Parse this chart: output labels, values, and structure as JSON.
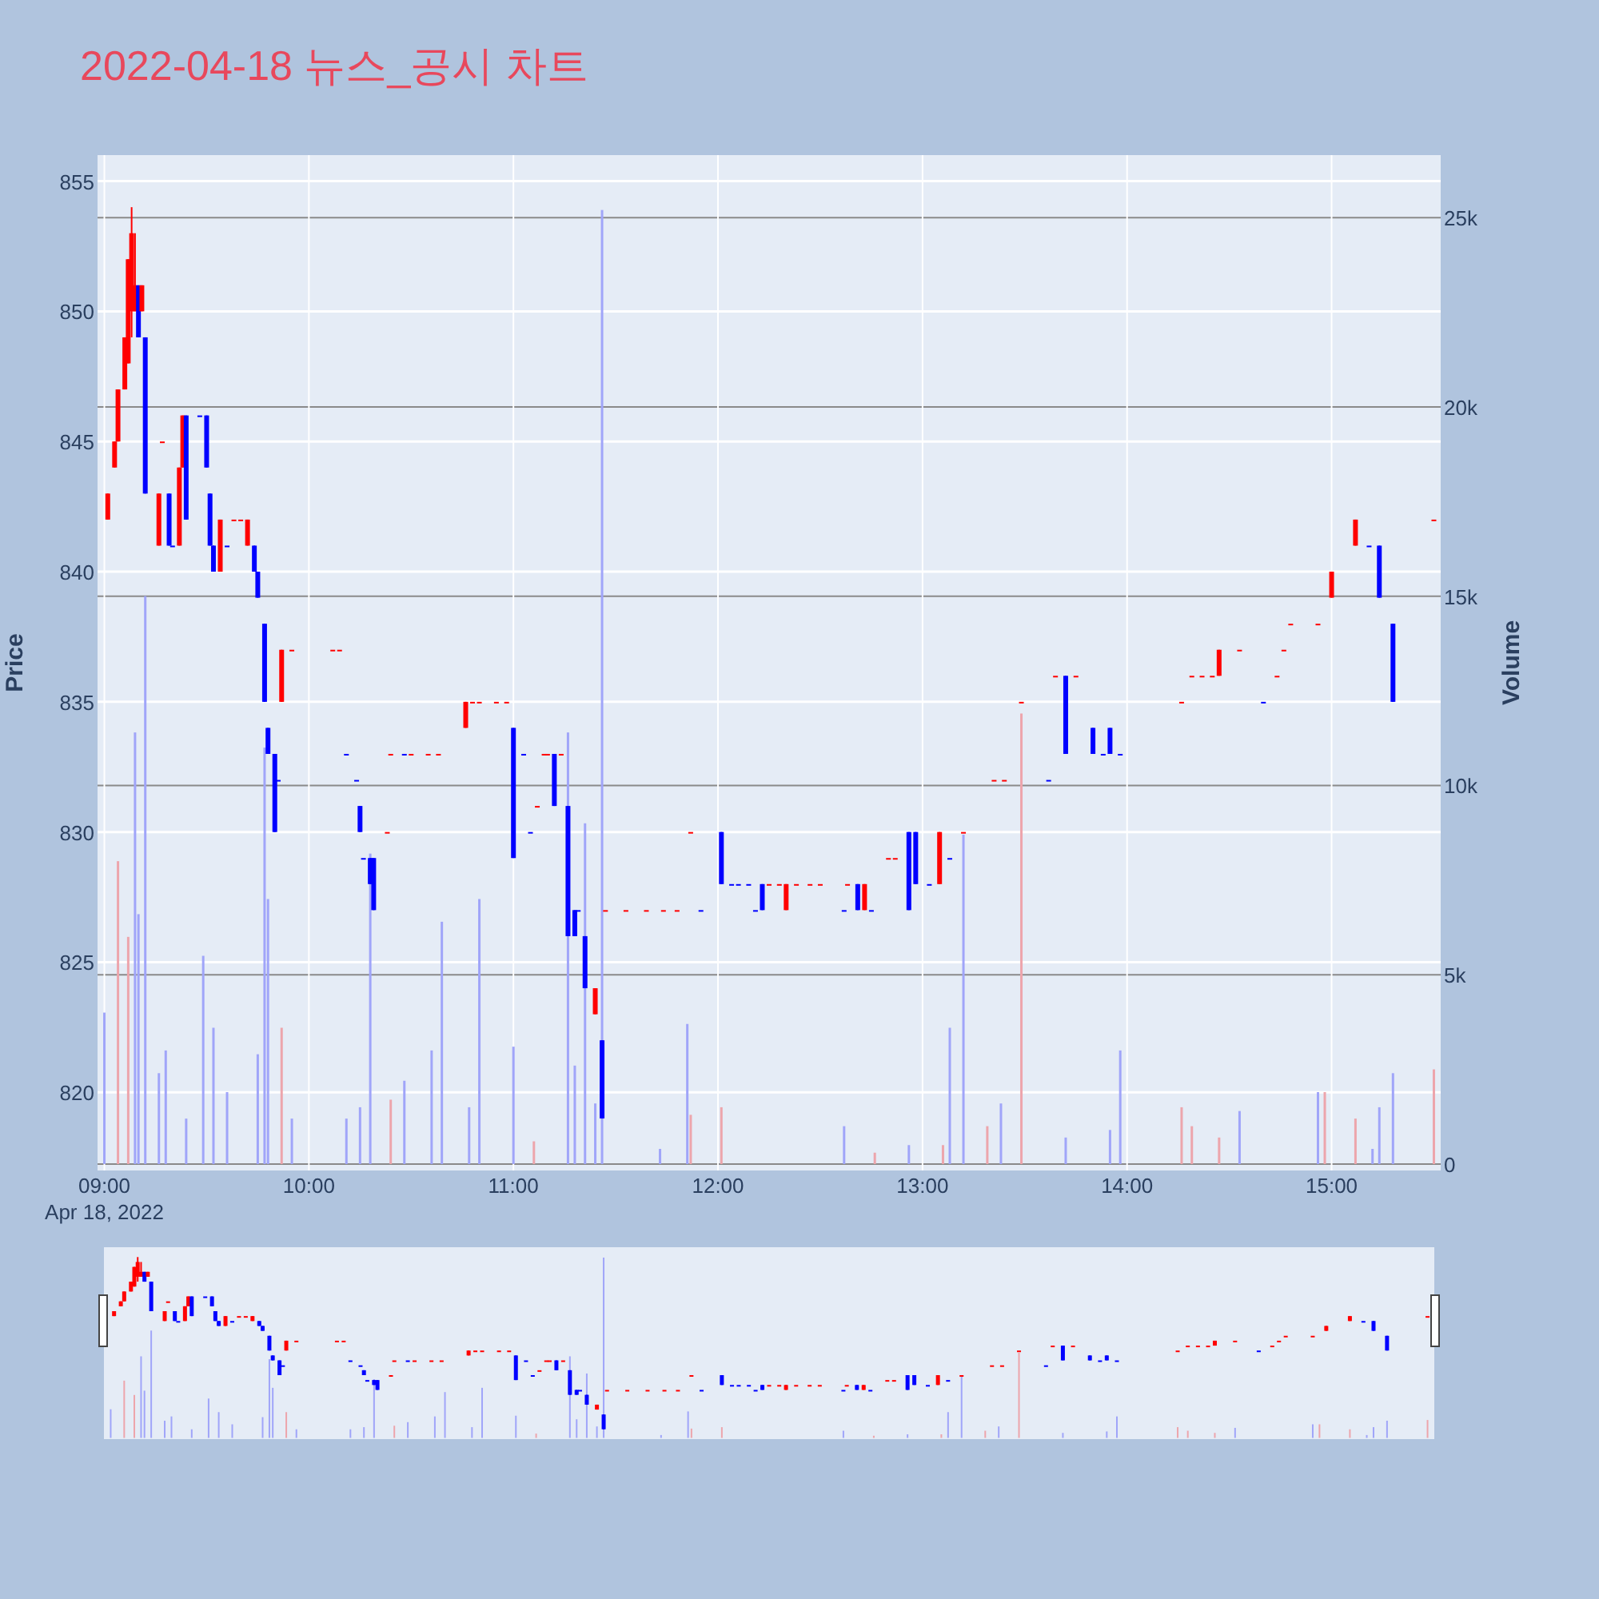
{
  "chart_data": {
    "type": "candlestick",
    "title": "2022-04-18 뉴스_공시 차트",
    "ylabel": "Price",
    "y2label": "Volume",
    "xlim": [
      "2022-04-18T08:58",
      "2022-04-18T15:32"
    ],
    "xticks": [
      {
        "value": "2022-04-18T09:00",
        "label": "09:00\nApr 18, 2022"
      },
      {
        "value": "2022-04-18T10:00",
        "label": "10:00"
      },
      {
        "value": "2022-04-18T11:00",
        "label": "11:00"
      },
      {
        "value": "2022-04-18T12:00",
        "label": "12:00"
      },
      {
        "value": "2022-04-18T13:00",
        "label": "13:00"
      },
      {
        "value": "2022-04-18T14:00",
        "label": "14:00"
      },
      {
        "value": "2022-04-18T15:00",
        "label": "15:00"
      }
    ],
    "ylim": [
      817,
      856
    ],
    "yticks": [
      820,
      825,
      830,
      835,
      840,
      845,
      850,
      855
    ],
    "y2lim": [
      -170,
      26650
    ],
    "y2ticks": [
      0,
      {
        "value": 5000,
        "label": "5k"
      },
      {
        "value": 10000,
        "label": "10k"
      },
      {
        "value": 15000,
        "label": "15k"
      },
      {
        "value": 20000,
        "label": "20k"
      },
      {
        "value": 25000,
        "label": "25k"
      }
    ],
    "grid": true,
    "x": [
      "2022-04-18T09:01",
      "2022-04-18T09:03",
      "2022-04-18T09:04",
      "2022-04-18T09:06",
      "2022-04-18T09:07",
      "2022-04-18T09:08",
      "2022-04-18T09:09",
      "2022-04-18T09:10",
      "2022-04-18T09:11",
      "2022-04-18T09:12",
      "2022-04-18T09:16",
      "2022-04-18T09:17",
      "2022-04-18T09:19",
      "2022-04-18T09:20",
      "2022-04-18T09:22",
      "2022-04-18T09:23",
      "2022-04-18T09:24",
      "2022-04-18T09:28",
      "2022-04-18T09:30",
      "2022-04-18T09:31",
      "2022-04-18T09:32",
      "2022-04-18T09:34",
      "2022-04-18T09:36",
      "2022-04-18T09:38",
      "2022-04-18T09:40",
      "2022-04-18T09:42",
      "2022-04-18T09:44",
      "2022-04-18T09:45",
      "2022-04-18T09:47",
      "2022-04-18T09:48",
      "2022-04-18T09:50",
      "2022-04-18T09:51",
      "2022-04-18T09:52",
      "2022-04-18T09:55",
      "2022-04-18T10:07",
      "2022-04-18T10:09",
      "2022-04-18T10:11",
      "2022-04-18T10:14",
      "2022-04-18T10:15",
      "2022-04-18T10:16",
      "2022-04-18T10:18",
      "2022-04-18T10:19",
      "2022-04-18T10:23",
      "2022-04-18T10:24",
      "2022-04-18T10:28",
      "2022-04-18T10:30",
      "2022-04-18T10:35",
      "2022-04-18T10:38",
      "2022-04-18T10:46",
      "2022-04-18T10:48",
      "2022-04-18T10:50",
      "2022-04-18T10:55",
      "2022-04-18T10:58",
      "2022-04-18T11:00",
      "2022-04-18T11:03",
      "2022-04-18T11:05",
      "2022-04-18T11:07",
      "2022-04-18T11:09",
      "2022-04-18T11:10",
      "2022-04-18T11:12",
      "2022-04-18T11:14",
      "2022-04-18T11:16",
      "2022-04-18T11:18",
      "2022-04-18T11:19",
      "2022-04-18T11:21",
      "2022-04-18T11:24",
      "2022-04-18T11:26",
      "2022-04-18T11:27",
      "2022-04-18T11:33",
      "2022-04-18T11:39",
      "2022-04-18T11:44",
      "2022-04-18T11:48",
      "2022-04-18T11:52",
      "2022-04-18T11:55",
      "2022-04-18T12:01",
      "2022-04-18T12:04",
      "2022-04-18T12:06",
      "2022-04-18T12:09",
      "2022-04-18T12:11",
      "2022-04-18T12:13",
      "2022-04-18T12:15",
      "2022-04-18T12:18",
      "2022-04-18T12:20",
      "2022-04-18T12:23",
      "2022-04-18T12:27",
      "2022-04-18T12:30",
      "2022-04-18T12:37",
      "2022-04-18T12:38",
      "2022-04-18T12:41",
      "2022-04-18T12:43",
      "2022-04-18T12:45",
      "2022-04-18T12:50",
      "2022-04-18T12:52",
      "2022-04-18T12:56",
      "2022-04-18T12:58",
      "2022-04-18T13:02",
      "2022-04-18T13:05",
      "2022-04-18T13:08",
      "2022-04-18T13:12",
      "2022-04-18T13:21",
      "2022-04-18T13:24",
      "2022-04-18T13:29",
      "2022-04-18T13:37",
      "2022-04-18T13:39",
      "2022-04-18T13:42",
      "2022-04-18T13:45",
      "2022-04-18T13:50",
      "2022-04-18T13:53",
      "2022-04-18T13:55",
      "2022-04-18T13:58",
      "2022-04-18T14:16",
      "2022-04-18T14:19",
      "2022-04-18T14:22",
      "2022-04-18T14:25",
      "2022-04-18T14:27",
      "2022-04-18T14:33",
      "2022-04-18T14:40",
      "2022-04-18T14:44",
      "2022-04-18T14:46",
      "2022-04-18T14:48",
      "2022-04-18T14:56",
      "2022-04-18T15:00",
      "2022-04-18T15:07",
      "2022-04-18T15:11",
      "2022-04-18T15:14",
      "2022-04-18T15:18",
      "2022-04-18T15:30"
    ],
    "ohlc": [
      [
        842,
        843,
        842,
        843
      ],
      [
        844,
        845,
        844,
        845
      ],
      [
        845,
        847,
        845,
        847
      ],
      [
        847,
        849,
        847,
        849
      ],
      [
        848,
        852,
        848,
        852
      ],
      [
        850,
        854,
        849,
        853
      ],
      [
        850,
        853,
        850,
        851
      ],
      [
        851,
        851,
        849,
        849
      ],
      [
        850,
        851,
        850,
        851
      ],
      [
        849,
        849,
        843,
        843
      ],
      [
        841,
        843,
        841,
        843
      ],
      [
        845,
        845,
        845,
        845
      ],
      [
        843,
        843,
        841,
        841
      ],
      [
        841,
        841,
        841,
        841
      ],
      [
        841,
        844,
        841,
        844
      ],
      [
        844,
        846,
        844,
        846
      ],
      [
        846,
        846,
        842,
        842
      ],
      [
        846,
        846,
        846,
        846
      ],
      [
        846,
        846,
        844,
        844
      ],
      [
        843,
        843,
        841,
        841
      ],
      [
        841,
        841,
        840,
        840
      ],
      [
        840,
        842,
        840,
        842
      ],
      [
        841,
        841,
        841,
        841
      ],
      [
        842,
        842,
        842,
        842
      ],
      [
        842,
        842,
        842,
        842
      ],
      [
        841,
        842,
        841,
        842
      ],
      [
        841,
        841,
        840,
        840
      ],
      [
        840,
        840,
        839,
        839
      ],
      [
        838,
        838,
        835,
        835
      ],
      [
        834,
        834,
        833,
        833
      ],
      [
        833,
        833,
        830,
        830
      ],
      [
        832,
        832,
        832,
        832
      ],
      [
        835,
        837,
        835,
        837
      ],
      [
        837,
        837,
        837,
        837
      ],
      [
        837,
        837,
        837,
        837
      ],
      [
        837,
        837,
        837,
        837
      ],
      [
        833,
        833,
        833,
        833
      ],
      [
        832,
        832,
        832,
        832
      ],
      [
        831,
        831,
        830,
        830
      ],
      [
        829,
        829,
        829,
        829
      ],
      [
        829,
        829,
        828,
        828
      ],
      [
        829,
        829,
        827,
        827
      ],
      [
        830,
        830,
        830,
        830
      ],
      [
        833,
        833,
        833,
        833
      ],
      [
        833,
        833,
        833,
        833
      ],
      [
        833,
        833,
        833,
        833
      ],
      [
        833,
        833,
        833,
        833
      ],
      [
        833,
        833,
        833,
        833
      ],
      [
        834,
        835,
        834,
        835
      ],
      [
        835,
        835,
        835,
        835
      ],
      [
        835,
        835,
        835,
        835
      ],
      [
        835,
        835,
        835,
        835
      ],
      [
        835,
        835,
        835,
        835
      ],
      [
        834,
        834,
        829,
        829
      ],
      [
        833,
        833,
        833,
        833
      ],
      [
        830,
        830,
        830,
        830
      ],
      [
        831,
        831,
        831,
        831
      ],
      [
        833,
        833,
        833,
        833
      ],
      [
        833,
        833,
        833,
        833
      ],
      [
        833,
        833,
        831,
        831
      ],
      [
        833,
        833,
        833,
        833
      ],
      [
        831,
        831,
        826,
        826
      ],
      [
        827,
        827,
        826,
        826
      ],
      [
        827,
        827,
        827,
        827
      ],
      [
        826,
        826,
        824,
        824
      ],
      [
        823,
        824,
        823,
        824
      ],
      [
        822,
        822,
        819,
        819
      ],
      [
        827,
        827,
        827,
        827
      ],
      [
        827,
        827,
        827,
        827
      ],
      [
        827,
        827,
        827,
        827
      ],
      [
        827,
        827,
        827,
        827
      ],
      [
        827,
        827,
        827,
        827
      ],
      [
        830,
        830,
        830,
        830
      ],
      [
        827,
        827,
        827,
        827
      ],
      [
        830,
        830,
        828,
        828
      ],
      [
        828,
        828,
        828,
        828
      ],
      [
        828,
        828,
        828,
        828
      ],
      [
        828,
        828,
        828,
        828
      ],
      [
        827,
        827,
        827,
        827
      ],
      [
        828,
        828,
        827,
        827
      ],
      [
        828,
        828,
        828,
        828
      ],
      [
        828,
        828,
        828,
        828
      ],
      [
        827,
        828,
        827,
        828
      ],
      [
        828,
        828,
        828,
        828
      ],
      [
        828,
        828,
        828,
        828
      ],
      [
        828,
        828,
        828,
        828
      ],
      [
        827,
        827,
        827,
        827
      ],
      [
        828,
        828,
        828,
        828
      ],
      [
        828,
        828,
        827,
        827
      ],
      [
        827,
        828,
        827,
        828
      ],
      [
        827,
        827,
        827,
        827
      ],
      [
        829,
        829,
        829,
        829
      ],
      [
        829,
        829,
        829,
        829
      ],
      [
        830,
        830,
        827,
        827
      ],
      [
        830,
        830,
        828,
        828
      ],
      [
        828,
        828,
        828,
        828
      ],
      [
        828,
        830,
        828,
        830
      ],
      [
        829,
        829,
        829,
        829
      ],
      [
        830,
        830,
        830,
        830
      ],
      [
        832,
        832,
        832,
        832
      ],
      [
        832,
        832,
        832,
        832
      ],
      [
        835,
        835,
        835,
        835
      ],
      [
        832,
        832,
        832,
        832
      ],
      [
        836,
        836,
        836,
        836
      ],
      [
        836,
        836,
        833,
        833
      ],
      [
        836,
        836,
        836,
        836
      ],
      [
        834,
        834,
        833,
        833
      ],
      [
        833,
        833,
        833,
        833
      ],
      [
        834,
        834,
        833,
        833
      ],
      [
        833,
        833,
        833,
        833
      ],
      [
        835,
        835,
        835,
        835
      ],
      [
        836,
        836,
        836,
        836
      ],
      [
        836,
        836,
        836,
        836
      ],
      [
        836,
        836,
        836,
        836
      ],
      [
        836,
        837,
        836,
        837
      ],
      [
        837,
        837,
        837,
        837
      ],
      [
        835,
        835,
        835,
        835
      ],
      [
        836,
        836,
        836,
        836
      ],
      [
        837,
        837,
        837,
        837
      ],
      [
        838,
        838,
        838,
        838
      ],
      [
        838,
        838,
        838,
        838
      ],
      [
        839,
        840,
        839,
        840
      ],
      [
        841,
        842,
        841,
        842
      ],
      [
        841,
        841,
        841,
        841
      ],
      [
        841,
        841,
        839,
        839
      ],
      [
        838,
        838,
        835,
        835
      ],
      [
        842,
        842,
        842,
        842
      ]
    ],
    "colors": [
      "#ff0000",
      "#ff0000",
      "#ff0000",
      "#ff0000",
      "#ff0000",
      "#ff0000",
      "#ff0000",
      "#0000ff",
      "#ff0000",
      "#0000ff",
      "#ff0000",
      "#ff0000",
      "#0000ff",
      "#0000ff",
      "#ff0000",
      "#ff0000",
      "#0000ff",
      "#0000ff",
      "#0000ff",
      "#0000ff",
      "#0000ff",
      "#ff0000",
      "#0000ff",
      "#ff0000",
      "#ff0000",
      "#ff0000",
      "#0000ff",
      "#0000ff",
      "#0000ff",
      "#0000ff",
      "#0000ff",
      "#0000ff",
      "#ff0000",
      "#ff0000",
      "#ff0000",
      "#ff0000",
      "#0000ff",
      "#0000ff",
      "#0000ff",
      "#0000ff",
      "#0000ff",
      "#0000ff",
      "#ff0000",
      "#ff0000",
      "#0000ff",
      "#ff0000",
      "#ff0000",
      "#ff0000",
      "#ff0000",
      "#ff0000",
      "#ff0000",
      "#ff0000",
      "#ff0000",
      "#0000ff",
      "#0000ff",
      "#0000ff",
      "#ff0000",
      "#ff0000",
      "#ff0000",
      "#0000ff",
      "#ff0000",
      "#0000ff",
      "#0000ff",
      "#0000ff",
      "#0000ff",
      "#ff0000",
      "#0000ff",
      "#ff0000",
      "#ff0000",
      "#ff0000",
      "#ff0000",
      "#ff0000",
      "#ff0000",
      "#0000ff",
      "#0000ff",
      "#0000ff",
      "#0000ff",
      "#0000ff",
      "#0000ff",
      "#0000ff",
      "#ff0000",
      "#ff0000",
      "#ff0000",
      "#ff0000",
      "#ff0000",
      "#ff0000",
      "#0000ff",
      "#ff0000",
      "#0000ff",
      "#ff0000",
      "#0000ff",
      "#ff0000",
      "#ff0000",
      "#0000ff",
      "#0000ff",
      "#0000ff",
      "#ff0000",
      "#0000ff",
      "#ff0000",
      "#ff0000",
      "#ff0000",
      "#ff0000",
      "#0000ff",
      "#ff0000",
      "#0000ff",
      "#ff0000",
      "#0000ff",
      "#0000ff",
      "#0000ff",
      "#0000ff",
      "#ff0000",
      "#ff0000",
      "#ff0000",
      "#ff0000",
      "#ff0000",
      "#ff0000",
      "#0000ff",
      "#ff0000",
      "#ff0000",
      "#ff0000",
      "#ff0000",
      "#ff0000",
      "#ff0000",
      "#0000ff",
      "#0000ff",
      "#0000ff",
      "#ff0000"
    ],
    "series": [
      {
        "type": "bar",
        "axis": "y2",
        "x": [
          "2022-04-18T09:00",
          "2022-04-18T09:04",
          "2022-04-18T09:07",
          "2022-04-18T09:09",
          "2022-04-18T09:10",
          "2022-04-18T09:12",
          "2022-04-18T09:16",
          "2022-04-18T09:18",
          "2022-04-18T09:24",
          "2022-04-18T09:29",
          "2022-04-18T09:32",
          "2022-04-18T09:36",
          "2022-04-18T09:45",
          "2022-04-18T09:47",
          "2022-04-18T09:48",
          "2022-04-18T09:52",
          "2022-04-18T09:55",
          "2022-04-18T10:11",
          "2022-04-18T10:15",
          "2022-04-18T10:18",
          "2022-04-18T10:24",
          "2022-04-18T10:28",
          "2022-04-18T10:36",
          "2022-04-18T10:39",
          "2022-04-18T10:47",
          "2022-04-18T10:50",
          "2022-04-18T11:00",
          "2022-04-18T11:06",
          "2022-04-18T11:16",
          "2022-04-18T11:18",
          "2022-04-18T11:21",
          "2022-04-18T11:24",
          "2022-04-18T11:26",
          "2022-04-18T11:43",
          "2022-04-18T11:51",
          "2022-04-18T11:52",
          "2022-04-18T12:01",
          "2022-04-18T12:37",
          "2022-04-18T12:46",
          "2022-04-18T12:56",
          "2022-04-18T13:06",
          "2022-04-18T13:08",
          "2022-04-18T13:12",
          "2022-04-18T13:19",
          "2022-04-18T13:23",
          "2022-04-18T13:29",
          "2022-04-18T13:42",
          "2022-04-18T13:55",
          "2022-04-18T13:58",
          "2022-04-18T14:16",
          "2022-04-18T14:19",
          "2022-04-18T14:27",
          "2022-04-18T14:33",
          "2022-04-18T14:56",
          "2022-04-18T14:58",
          "2022-04-18T15:07",
          "2022-04-18T15:12",
          "2022-04-18T15:14",
          "2022-04-18T15:18",
          "2022-04-18T15:30"
        ],
        "values": [
          4000,
          8000,
          6000,
          11400,
          6600,
          15000,
          2400,
          3000,
          1200,
          5500,
          3600,
          1900,
          2900,
          11000,
          7000,
          3600,
          1200,
          1200,
          1500,
          8200,
          1700,
          2200,
          3000,
          6400,
          1500,
          7000,
          3100,
          600,
          11400,
          2600,
          9000,
          1600,
          25200,
          400,
          3700,
          1300,
          1500,
          1000,
          300,
          500,
          500,
          3600,
          8700,
          1000,
          1600,
          11900,
          700,
          900,
          3000,
          1500,
          1000,
          700,
          1400,
          1900,
          1900,
          1200,
          400,
          1500,
          2400,
          2500
        ],
        "colors": [
          "#a0a5f9",
          "#eda5ac",
          "#eda5ac",
          "#a0a5f9",
          "#a0a5f9",
          "#a0a5f9",
          "#a0a5f9",
          "#a0a5f9",
          "#a0a5f9",
          "#a0a5f9",
          "#a0a5f9",
          "#a0a5f9",
          "#a0a5f9",
          "#a0a5f9",
          "#a0a5f9",
          "#eda5ac",
          "#a0a5f9",
          "#a0a5f9",
          "#a0a5f9",
          "#a0a5f9",
          "#eda5ac",
          "#a0a5f9",
          "#a0a5f9",
          "#a0a5f9",
          "#a0a5f9",
          "#a0a5f9",
          "#a0a5f9",
          "#eda5ac",
          "#a0a5f9",
          "#a0a5f9",
          "#a0a5f9",
          "#a0a5f9",
          "#a0a5f9",
          "#a0a5f9",
          "#a0a5f9",
          "#eda5ac",
          "#eda5ac",
          "#a0a5f9",
          "#eda5ac",
          "#a0a5f9",
          "#eda5ac",
          "#a0a5f9",
          "#a0a5f9",
          "#eda5ac",
          "#a0a5f9",
          "#eda5ac",
          "#a0a5f9",
          "#a0a5f9",
          "#a0a5f9",
          "#eda5ac",
          "#eda5ac",
          "#eda5ac",
          "#a0a5f9",
          "#a0a5f9",
          "#eda5ac",
          "#eda5ac",
          "#a0a5f9",
          "#a0a5f9",
          "#a0a5f9",
          "#eda5ac"
        ]
      }
    ]
  }
}
